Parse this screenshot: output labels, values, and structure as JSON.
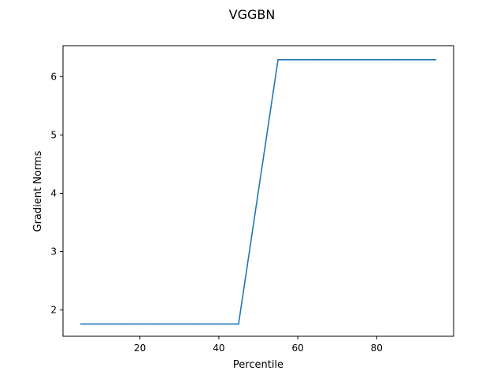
{
  "chart_data": {
    "type": "line",
    "title": "VGGBN",
    "xlabel": "Percentile",
    "ylabel": "Gradient Norms",
    "xlim": [
      0.5,
      99.5
    ],
    "ylim": [
      1.55,
      6.53
    ],
    "xticks": [
      20,
      40,
      60,
      80
    ],
    "yticks": [
      2,
      3,
      4,
      5,
      6
    ],
    "grid": false,
    "series": [
      {
        "color": "#1f77b4",
        "x": [
          5,
          15,
          25,
          35,
          45,
          55,
          65,
          75,
          85,
          95
        ],
        "y": [
          1.76,
          1.76,
          1.76,
          1.76,
          1.76,
          6.29,
          6.29,
          6.29,
          6.29,
          6.29
        ]
      }
    ]
  }
}
